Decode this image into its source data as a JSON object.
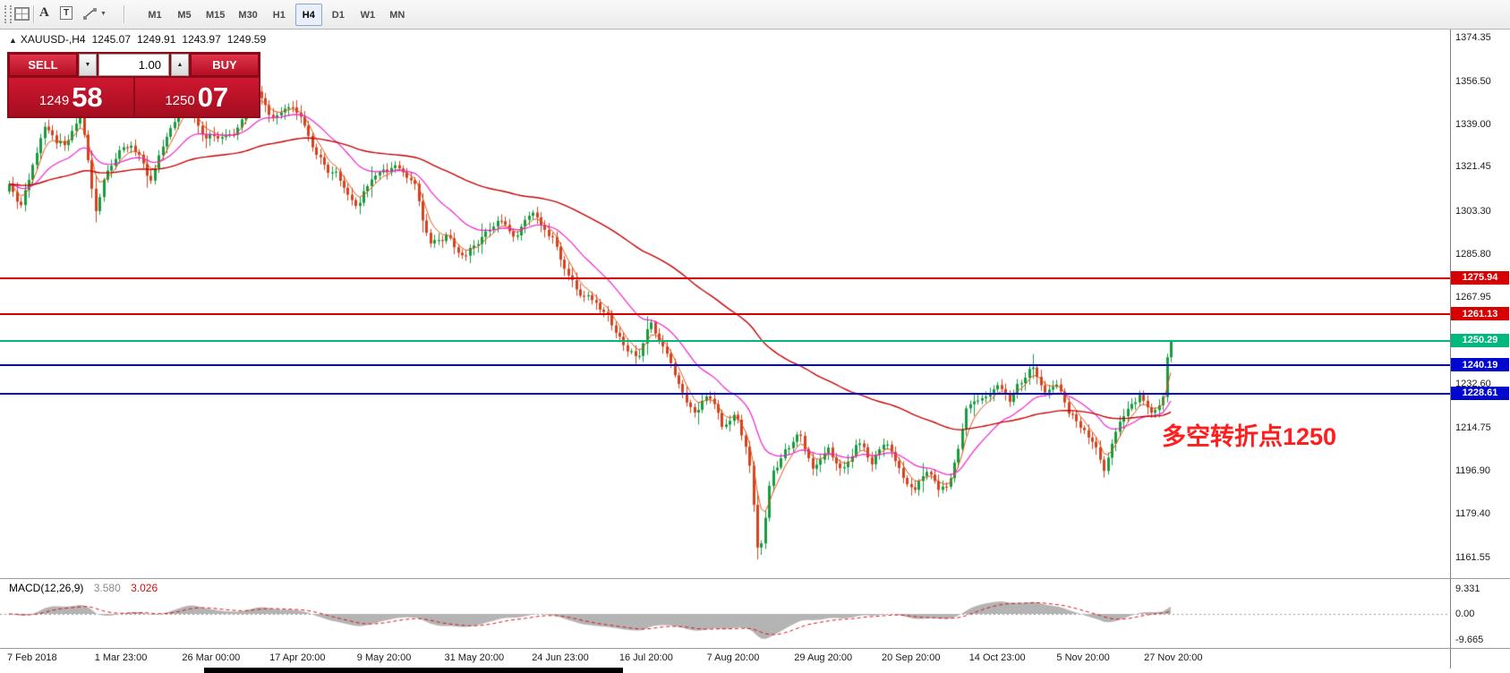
{
  "toolbar": {
    "tools": {
      "a_glyph": "A",
      "t_glyph": "T",
      "caret_glyph": "▼"
    },
    "timeframes": [
      {
        "label": "M1",
        "active": false
      },
      {
        "label": "M5",
        "active": false
      },
      {
        "label": "M15",
        "active": false
      },
      {
        "label": "M30",
        "active": false
      },
      {
        "label": "H1",
        "active": false
      },
      {
        "label": "H4",
        "active": true
      },
      {
        "label": "D1",
        "active": false
      },
      {
        "label": "W1",
        "active": false
      },
      {
        "label": "MN",
        "active": false
      }
    ]
  },
  "chart": {
    "symbol_header": {
      "marker": "▲",
      "symbol": "XAUUSD-,H4",
      "open": "1245.07",
      "high": "1249.91",
      "low": "1243.97",
      "close": "1249.59"
    },
    "trade_panel": {
      "sell_label": "SELL",
      "buy_label": "BUY",
      "volume": "1.00",
      "down_glyph": "▼",
      "up_glyph": "▲",
      "sell_price_main": "1249",
      "sell_price_big": "58",
      "buy_price_main": "1250",
      "buy_price_big": "07"
    },
    "levels": [
      {
        "price": 1275.94,
        "label": "1275.94",
        "color": "#d60000"
      },
      {
        "price": 1261.13,
        "label": "1261.13",
        "color": "#d60000"
      },
      {
        "price": 1250.29,
        "label": "1250.29",
        "color": "#00b87e"
      },
      {
        "price": 1240.19,
        "label": "1240.19",
        "color": "#0008cf"
      },
      {
        "price": 1228.61,
        "label": "1228.61",
        "color": "#0008cf"
      }
    ],
    "y_axis": [
      "1374.35",
      "1356.50",
      "1339.00",
      "1321.45",
      "1303.30",
      "1285.80",
      "1267.95",
      "1232.60",
      "1214.75",
      "1196.90",
      "1179.40",
      "1161.55"
    ],
    "x_axis": [
      "7 Feb 2018",
      "1 Mar 23:00",
      "26 Mar 00:00",
      "17 Apr 20:00",
      "9 May 20:00",
      "31 May 20:00",
      "24 Jun 23:00",
      "16 Jul 20:00",
      "7 Aug 20:00",
      "29 Aug 20:00",
      "20 Sep 20:00",
      "14 Oct 23:00",
      "5 Nov 20:00",
      "27 Nov 20:00"
    ],
    "annotation": {
      "text": "多空转折点1250",
      "color": "#ff1e1e"
    }
  },
  "macd": {
    "name": "MACD(12,26,9)",
    "main_value": "3.580",
    "signal_value": "3.026",
    "scale": [
      "9.331",
      "0.00",
      "-9.665"
    ]
  },
  "chart_data": {
    "type": "candlestick",
    "symbol": "XAUUSD-",
    "timeframe": "H4",
    "visible_price_range": [
      1153,
      1378
    ],
    "last_price": 1250.29,
    "horizontal_levels": [
      1275.94,
      1261.13,
      1250.29,
      1240.19,
      1228.61
    ],
    "colors": {
      "up": "#169b3f",
      "down": "#d6411e",
      "ma_fast": "#e05512",
      "ma_mid": "#ee22cc",
      "ma_slow": "#c40000",
      "macd_hist": "#b4b4b4",
      "macd_signal": "#e01212"
    },
    "price_anchors": [
      [
        0,
        1314
      ],
      [
        0.01,
        1306
      ],
      [
        0.03,
        1338
      ],
      [
        0.048,
        1330
      ],
      [
        0.062,
        1342
      ],
      [
        0.074,
        1305
      ],
      [
        0.088,
        1324
      ],
      [
        0.105,
        1332
      ],
      [
        0.122,
        1316
      ],
      [
        0.14,
        1338
      ],
      [
        0.152,
        1350
      ],
      [
        0.165,
        1336
      ],
      [
        0.185,
        1332
      ],
      [
        0.2,
        1341
      ],
      [
        0.213,
        1351
      ],
      [
        0.227,
        1340
      ],
      [
        0.243,
        1347
      ],
      [
        0.258,
        1334
      ],
      [
        0.272,
        1320
      ],
      [
        0.288,
        1315
      ],
      [
        0.3,
        1305
      ],
      [
        0.312,
        1314
      ],
      [
        0.33,
        1322
      ],
      [
        0.348,
        1316
      ],
      [
        0.362,
        1288
      ],
      [
        0.377,
        1294
      ],
      [
        0.392,
        1283
      ],
      [
        0.407,
        1293
      ],
      [
        0.422,
        1299
      ],
      [
        0.437,
        1293
      ],
      [
        0.452,
        1303
      ],
      [
        0.467,
        1294
      ],
      [
        0.482,
        1276
      ],
      [
        0.497,
        1268
      ],
      [
        0.512,
        1262
      ],
      [
        0.527,
        1251
      ],
      [
        0.54,
        1242
      ],
      [
        0.552,
        1256
      ],
      [
        0.565,
        1246
      ],
      [
        0.578,
        1230
      ],
      [
        0.59,
        1221
      ],
      [
        0.602,
        1228
      ],
      [
        0.614,
        1214
      ],
      [
        0.625,
        1221
      ],
      [
        0.636,
        1204
      ],
      [
        0.645,
        1162
      ],
      [
        0.655,
        1192
      ],
      [
        0.668,
        1205
      ],
      [
        0.68,
        1213
      ],
      [
        0.692,
        1196
      ],
      [
        0.705,
        1206
      ],
      [
        0.718,
        1198
      ],
      [
        0.73,
        1208
      ],
      [
        0.742,
        1200
      ],
      [
        0.754,
        1210
      ],
      [
        0.766,
        1197
      ],
      [
        0.778,
        1186
      ],
      [
        0.79,
        1198
      ],
      [
        0.8,
        1187
      ],
      [
        0.812,
        1196
      ],
      [
        0.824,
        1221
      ],
      [
        0.836,
        1226
      ],
      [
        0.85,
        1232
      ],
      [
        0.861,
        1225
      ],
      [
        0.873,
        1236
      ],
      [
        0.882,
        1240
      ],
      [
        0.892,
        1229
      ],
      [
        0.902,
        1233
      ],
      [
        0.912,
        1221
      ],
      [
        0.922,
        1214
      ],
      [
        0.932,
        1209
      ],
      [
        0.943,
        1198
      ],
      [
        0.953,
        1212
      ],
      [
        0.963,
        1221
      ],
      [
        0.973,
        1227
      ],
      [
        0.983,
        1220
      ],
      [
        0.993,
        1226
      ],
      [
        1,
        1250
      ]
    ]
  }
}
